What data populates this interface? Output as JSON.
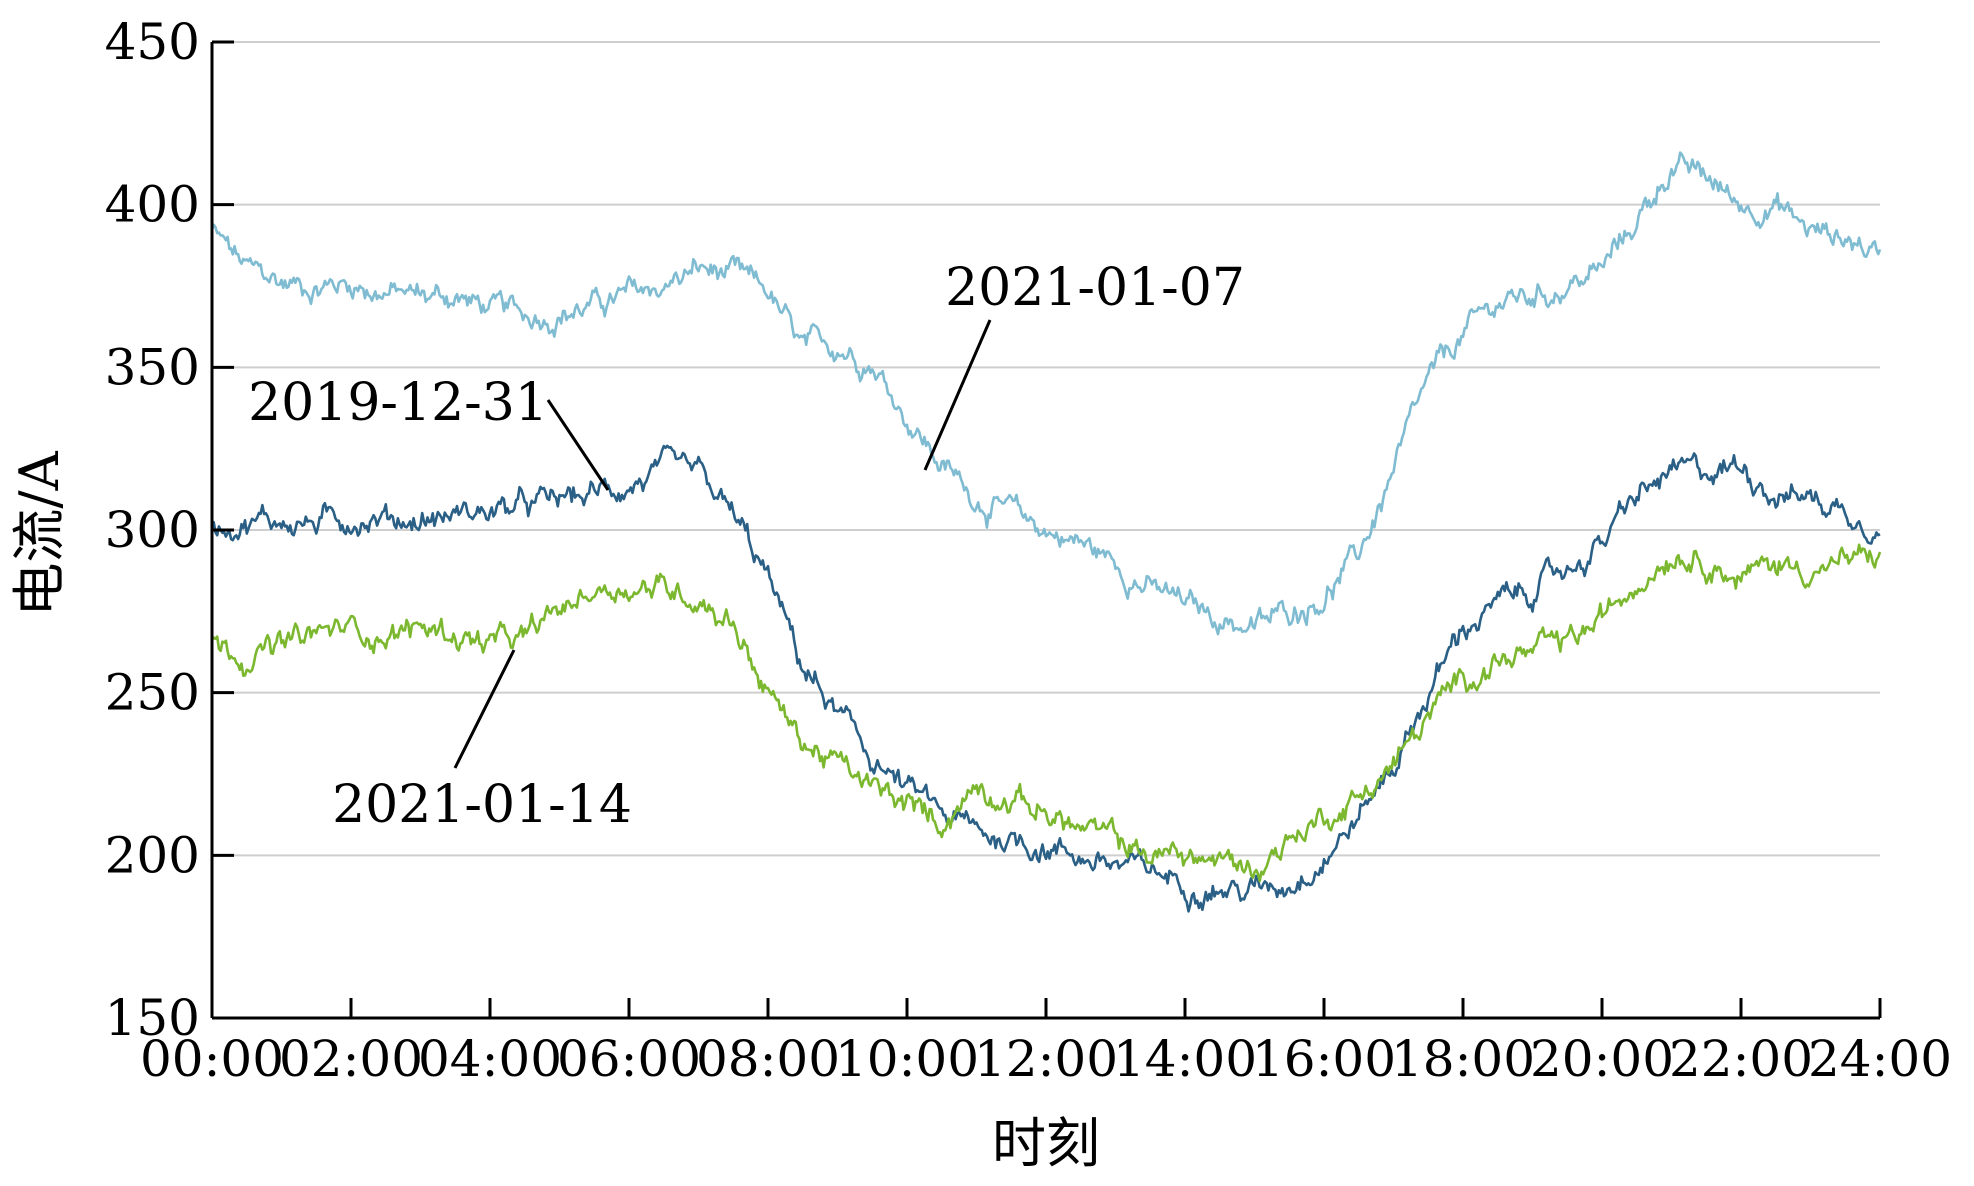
{
  "chart_data": {
    "type": "line",
    "xlabel": "时刻",
    "ylabel": "电流/A",
    "x_ticks": [
      "00:00",
      "02:00",
      "04:00",
      "06:00",
      "08:00",
      "10:00",
      "12:00",
      "14:00",
      "16:00",
      "18:00",
      "20:00",
      "22:00",
      "24:00"
    ],
    "xlim": [
      0,
      24
    ],
    "ylim": [
      150,
      450
    ],
    "y_ticks": [
      150,
      200,
      250,
      300,
      350,
      400,
      450
    ],
    "grid": "horizontal",
    "colors": {
      "2021-01-07": "#7fbcd2",
      "2019-12-31": "#2a5f86",
      "2021-01-14": "#7cb82f",
      "grid": "#cfcfcf",
      "axis": "#000000"
    },
    "series": [
      {
        "name": "2021-01-07",
        "x": [
          0,
          0.5,
          1,
          1.5,
          2,
          2.5,
          3,
          3.5,
          4,
          4.5,
          5,
          5.5,
          6,
          6.5,
          7,
          7.5,
          8,
          8.5,
          9,
          9.5,
          10,
          10.5,
          11,
          11.5,
          12,
          12.5,
          13,
          13.5,
          14,
          14.5,
          15,
          15.5,
          16,
          16.5,
          17,
          17.5,
          18,
          18.5,
          19,
          19.5,
          20,
          20.5,
          21,
          21.5,
          22,
          22.5,
          23,
          23.5,
          24
        ],
        "values": [
          392,
          380,
          376,
          375,
          376,
          373,
          372,
          372,
          368,
          366,
          367,
          369,
          372,
          375,
          380,
          378,
          373,
          355,
          357,
          352,
          335,
          320,
          310,
          305,
          300,
          296,
          290,
          282,
          277,
          273,
          270,
          275,
          280,
          292,
          318,
          345,
          360,
          370,
          372,
          375,
          380,
          395,
          412,
          408,
          400,
          400,
          392,
          390,
          385
        ]
      },
      {
        "name": "2019-12-31",
        "x": [
          0,
          0.5,
          1,
          1.5,
          2,
          2.5,
          3,
          3.5,
          4,
          4.5,
          5,
          5.5,
          6,
          6.5,
          7,
          7.5,
          8,
          8.5,
          9,
          9.5,
          10,
          10.5,
          11,
          11.5,
          12,
          12.5,
          13,
          13.5,
          14,
          14.5,
          15,
          15.5,
          16,
          16.5,
          17,
          17.5,
          18,
          18.5,
          19,
          19.5,
          20,
          20.5,
          21,
          21.5,
          22,
          22.5,
          23,
          23.5,
          24
        ],
        "values": [
          302,
          303,
          303,
          302,
          304,
          304,
          303,
          305,
          306,
          307,
          309,
          311,
          314,
          318,
          316,
          304,
          285,
          258,
          243,
          230,
          220,
          213,
          207,
          205,
          203,
          200,
          197,
          195,
          192,
          190,
          189,
          192,
          200,
          212,
          228,
          250,
          270,
          277,
          282,
          288,
          296,
          310,
          317,
          318,
          320,
          312,
          310,
          306,
          302
        ]
      },
      {
        "name": "2021-01-14",
        "x": [
          0,
          0.5,
          1,
          1.5,
          2,
          2.5,
          3,
          3.5,
          4,
          4.5,
          5,
          5.5,
          6,
          6.5,
          7,
          7.5,
          8,
          8.5,
          9,
          9.5,
          10,
          10.5,
          11,
          11.5,
          12,
          12.5,
          13,
          13.5,
          14,
          14.5,
          15,
          15.5,
          16,
          16.5,
          17,
          17.5,
          18,
          18.5,
          19,
          19.5,
          20,
          20.5,
          21,
          21.5,
          22,
          22.5,
          23,
          23.5,
          24
        ],
        "values": [
          265,
          262,
          264,
          268,
          270,
          268,
          270,
          268,
          265,
          266,
          275,
          282,
          283,
          282,
          280,
          272,
          250,
          235,
          228,
          220,
          215,
          210,
          222,
          218,
          213,
          208,
          205,
          200,
          200,
          198,
          196,
          205,
          212,
          218,
          228,
          242,
          255,
          260,
          262,
          265,
          272,
          285,
          294,
          292,
          285,
          290,
          288,
          290,
          292
        ]
      }
    ],
    "annotations": [
      {
        "text": "2021-01-07",
        "series": "2021-01-07"
      },
      {
        "text": "2019-12-31",
        "series": "2019-12-31"
      },
      {
        "text": "2021-01-14",
        "series": "2021-01-14"
      }
    ]
  }
}
